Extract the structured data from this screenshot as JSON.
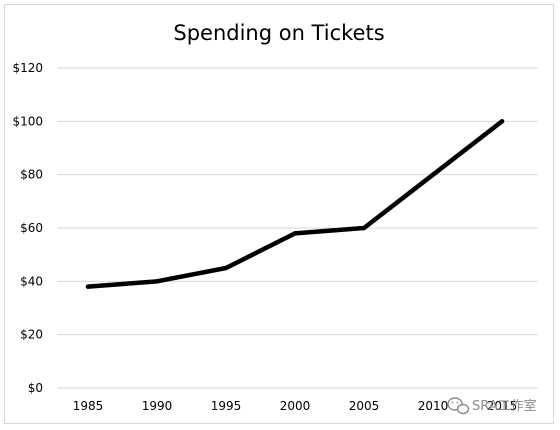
{
  "chart_data": {
    "type": "line",
    "title": "Spending on Tickets",
    "xlabel": "",
    "ylabel": "",
    "categories": [
      "1985",
      "1990",
      "1995",
      "2000",
      "2005",
      "2010",
      "2015"
    ],
    "series": [
      {
        "values": [
          38,
          40,
          45,
          58,
          60,
          80,
          100
        ],
        "color": "#000000"
      }
    ],
    "ylim": [
      0,
      120
    ],
    "y_ticks": [
      "$0",
      "$20",
      "$40",
      "$60",
      "$80",
      "$100",
      "$120"
    ],
    "y_tick_values": [
      0,
      20,
      40,
      60,
      80,
      100,
      120
    ],
    "grid": "horizontal",
    "legend": "none"
  },
  "watermark": {
    "text": "SRA工作室",
    "icon": "wechat-icon",
    "color": "#8a8a8a"
  }
}
